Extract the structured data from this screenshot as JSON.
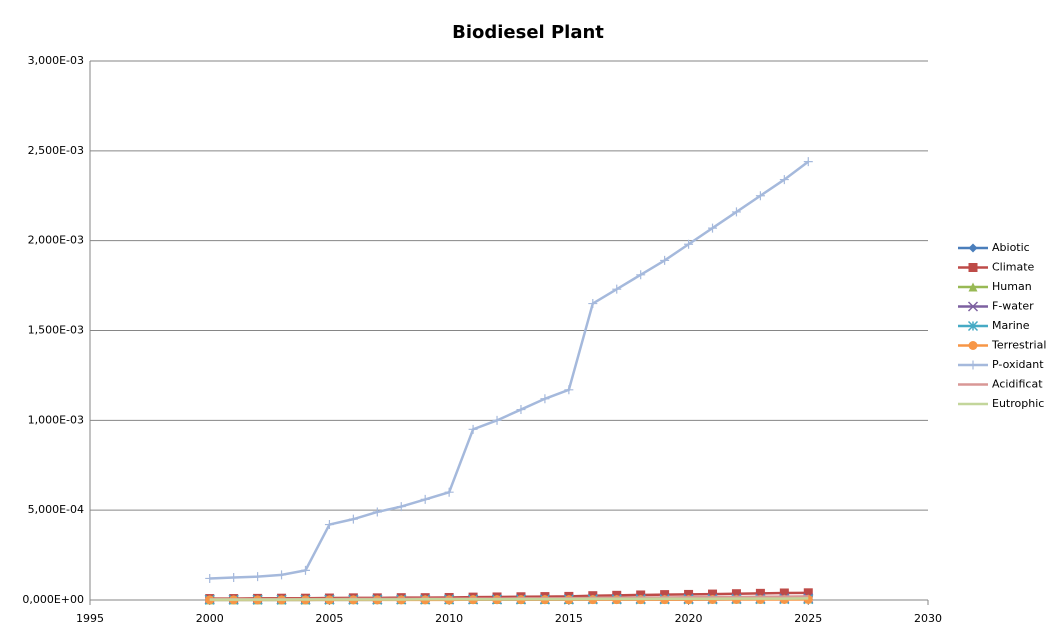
{
  "chart_data": {
    "type": "line",
    "title": "Biodiesel Plant",
    "x": [
      2000,
      2001,
      2002,
      2003,
      2004,
      2005,
      2006,
      2007,
      2008,
      2009,
      2010,
      2011,
      2012,
      2013,
      2014,
      2015,
      2016,
      2017,
      2018,
      2019,
      2020,
      2021,
      2022,
      2023,
      2024,
      2025
    ],
    "xlim": [
      1995,
      2030
    ],
    "xticks": [
      1995,
      2000,
      2005,
      2010,
      2015,
      2020,
      2025,
      2030
    ],
    "ylim": [
      0,
      0.003
    ],
    "yticks": [
      {
        "value": 0,
        "label": "0,000E+00"
      },
      {
        "value": 0.0005,
        "label": "5,000E-04"
      },
      {
        "value": 0.001,
        "label": "1,000E-03"
      },
      {
        "value": 0.0015,
        "label": "1,500E-03"
      },
      {
        "value": 0.002,
        "label": "2,000E-03"
      },
      {
        "value": 0.0025,
        "label": "2,500E-03"
      },
      {
        "value": 0.003,
        "label": "3,000E-03"
      }
    ],
    "grid": true,
    "legend": "right",
    "series": [
      {
        "name": "Abiotic",
        "color": "#4a7ebb",
        "marker": "diamond",
        "values": [
          3e-06,
          3e-06,
          4e-06,
          4e-06,
          4e-06,
          5e-06,
          5e-06,
          5e-06,
          6e-06,
          6e-06,
          6e-06,
          7e-06,
          7e-06,
          7e-06,
          8e-06,
          8e-06,
          9e-06,
          9e-06,
          1e-05,
          1e-05,
          1.1e-05,
          1.1e-05,
          1.2e-05,
          1.2e-05,
          1.3e-05,
          1.3e-05
        ]
      },
      {
        "name": "Climate",
        "color": "#be4b48",
        "marker": "square",
        "values": [
          8e-06,
          8e-06,
          9e-06,
          1e-05,
          1e-05,
          1.1e-05,
          1.2e-05,
          1.2e-05,
          1.3e-05,
          1.3e-05,
          1.4e-05,
          1.6e-05,
          1.7e-05,
          1.8e-05,
          1.9e-05,
          2e-05,
          2.4e-05,
          2.6e-05,
          2.8e-05,
          3e-05,
          3.1e-05,
          3.3e-05,
          3.5e-05,
          3.7e-05,
          3.9e-05,
          4e-05
        ]
      },
      {
        "name": "Human",
        "color": "#98b954",
        "marker": "triangle",
        "values": [
          1e-06,
          1e-06,
          1e-06,
          1e-06,
          1e-06,
          2e-06,
          2e-06,
          2e-06,
          2e-06,
          2e-06,
          2e-06,
          3e-06,
          3e-06,
          3e-06,
          3e-06,
          3e-06,
          4e-06,
          4e-06,
          4e-06,
          4e-06,
          5e-06,
          5e-06,
          5e-06,
          5e-06,
          6e-06,
          6e-06
        ]
      },
      {
        "name": "F-water",
        "color": "#7d60a0",
        "marker": "x",
        "values": [
          2e-06,
          2e-06,
          2e-06,
          2e-06,
          2e-06,
          3e-06,
          3e-06,
          3e-06,
          3e-06,
          3e-06,
          4e-06,
          4e-06,
          4e-06,
          5e-06,
          5e-06,
          5e-06,
          6e-06,
          6e-06,
          7e-06,
          7e-06,
          8e-06,
          8e-06,
          9e-06,
          9e-06,
          1e-05,
          1e-05
        ]
      },
      {
        "name": "Marine",
        "color": "#46aac5",
        "marker": "star",
        "values": [
          1e-06,
          1e-06,
          1e-06,
          1e-06,
          1e-06,
          1e-06,
          1e-06,
          1e-06,
          2e-06,
          2e-06,
          2e-06,
          2e-06,
          2e-06,
          2e-06,
          2e-06,
          2e-06,
          3e-06,
          3e-06,
          3e-06,
          3e-06,
          3e-06,
          3e-06,
          4e-06,
          4e-06,
          4e-06,
          4e-06
        ]
      },
      {
        "name": "Terrestrial",
        "color": "#f79646",
        "marker": "circle",
        "values": [
          1e-06,
          1e-06,
          1e-06,
          1e-06,
          1e-06,
          1e-06,
          1e-06,
          1e-06,
          1e-06,
          1e-06,
          1e-06,
          2e-06,
          2e-06,
          2e-06,
          2e-06,
          2e-06,
          2e-06,
          2e-06,
          2e-06,
          2e-06,
          2e-06,
          3e-06,
          3e-06,
          3e-06,
          3e-06,
          3e-06
        ]
      },
      {
        "name": "P-oxidant",
        "color": "#a5b9dc",
        "marker": "plus",
        "values": [
          0.00012,
          0.000125,
          0.00013,
          0.00014,
          0.000165,
          0.00042,
          0.00045,
          0.00049,
          0.00052,
          0.00056,
          0.0006,
          0.00095,
          0.001,
          0.00106,
          0.00112,
          0.00117,
          0.00165,
          0.00173,
          0.00181,
          0.00189,
          0.00198,
          0.00207,
          0.00216,
          0.00225,
          0.00234,
          0.00244
        ]
      },
      {
        "name": "Acidificat",
        "color": "#d99795",
        "marker": "none",
        "values": [
          4e-06,
          4e-06,
          4e-06,
          5e-06,
          5e-06,
          5e-06,
          6e-06,
          6e-06,
          6e-06,
          7e-06,
          7e-06,
          8e-06,
          8e-06,
          9e-06,
          9e-06,
          1e-05,
          1.1e-05,
          1.2e-05,
          1.3e-05,
          1.4e-05,
          1.5e-05,
          1.6e-05,
          1.7e-05,
          1.8e-05,
          1.9e-05,
          2e-05
        ]
      },
      {
        "name": "Eutrophic",
        "color": "#c3d69b",
        "marker": "none",
        "values": [
          2e-06,
          2e-06,
          2e-06,
          2e-06,
          3e-06,
          3e-06,
          3e-06,
          3e-06,
          3e-06,
          4e-06,
          4e-06,
          4e-06,
          4e-06,
          5e-06,
          5e-06,
          5e-06,
          6e-06,
          6e-06,
          6e-06,
          7e-06,
          7e-06,
          7e-06,
          8e-06,
          8e-06,
          8e-06,
          9e-06
        ]
      }
    ]
  }
}
